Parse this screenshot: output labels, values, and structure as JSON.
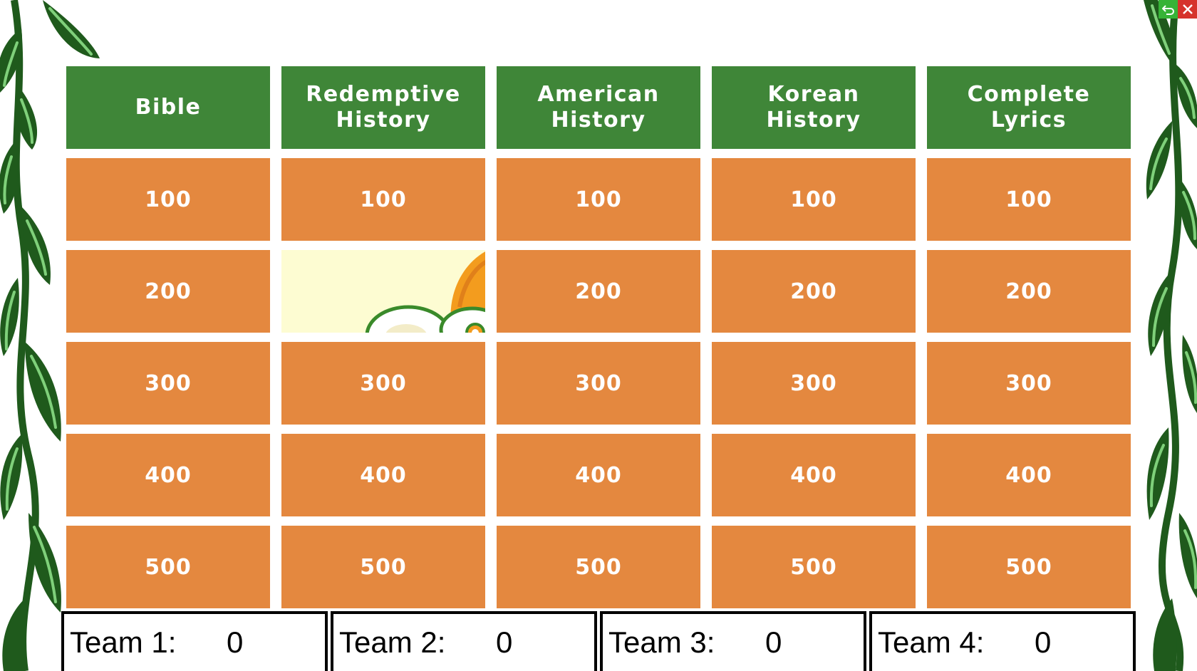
{
  "board": {
    "categories": [
      {
        "label": "Bible"
      },
      {
        "label": "Redemptive History"
      },
      {
        "label": "American History"
      },
      {
        "label": "Korean History"
      },
      {
        "label": "Complete Lyrics"
      }
    ],
    "rows": [
      [
        "100",
        "100",
        "100",
        "100",
        "100"
      ],
      [
        "200",
        "",
        "200",
        "200",
        "200"
      ],
      [
        "300",
        "300",
        "300",
        "300",
        "300"
      ],
      [
        "400",
        "400",
        "400",
        "400",
        "400"
      ],
      [
        "500",
        "500",
        "500",
        "500",
        "500"
      ]
    ]
  },
  "teams": [
    {
      "label": "Team 1:",
      "score": "0"
    },
    {
      "label": "Team 2:",
      "score": "0"
    },
    {
      "label": "Team 3:",
      "score": "0"
    },
    {
      "label": "Team 4:",
      "score": "0"
    }
  ],
  "controls": {
    "back_icon": "undo-arrow-icon",
    "close_icon": "close-icon"
  },
  "colors": {
    "header_green": "#3f8638",
    "tile_orange": "#e4883f",
    "used_tile": "#fdfcd2",
    "vine_green": "#1f5a1c"
  }
}
